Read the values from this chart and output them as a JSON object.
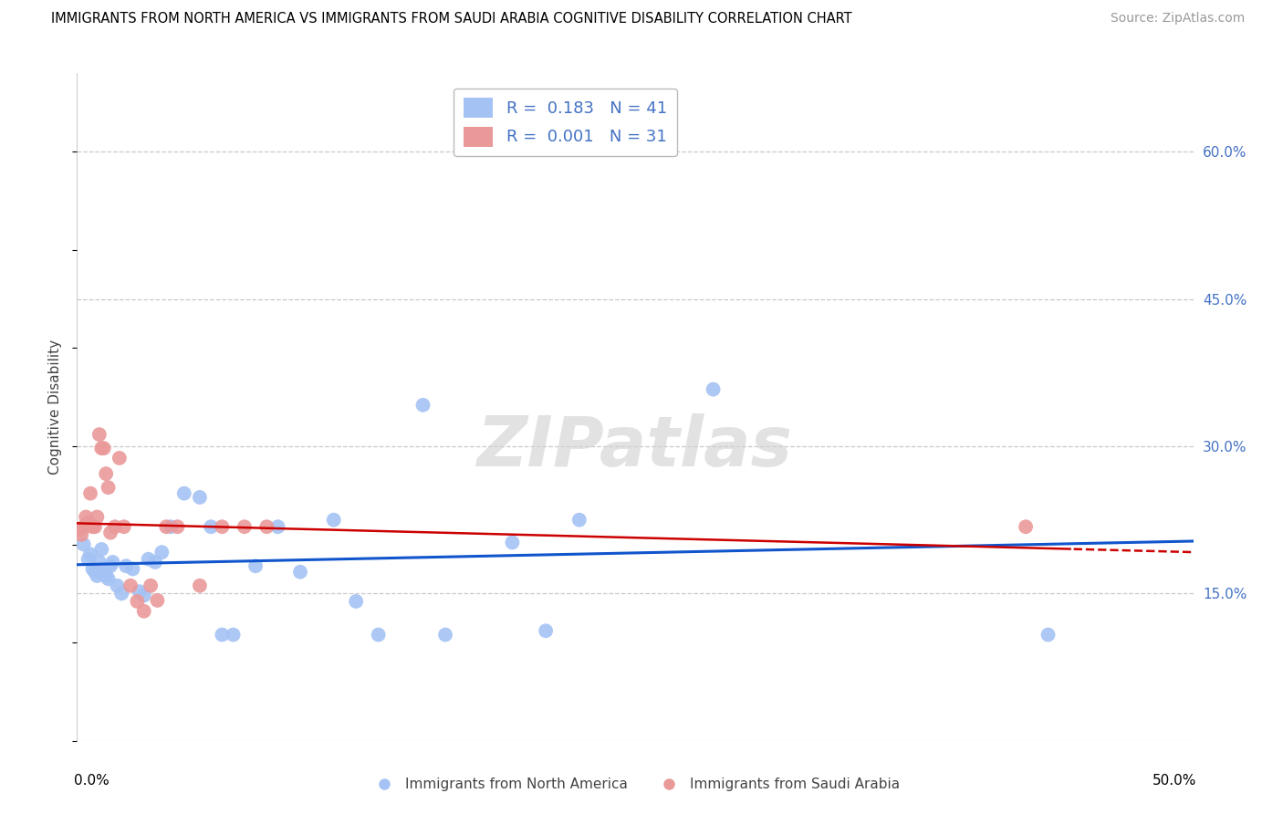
{
  "title": "IMMIGRANTS FROM NORTH AMERICA VS IMMIGRANTS FROM SAUDI ARABIA COGNITIVE DISABILITY CORRELATION CHART",
  "source": "Source: ZipAtlas.com",
  "ylabel": "Cognitive Disability",
  "right_ytick_labels": [
    "60.0%",
    "45.0%",
    "30.0%",
    "15.0%"
  ],
  "right_ytick_vals": [
    0.6,
    0.45,
    0.3,
    0.15
  ],
  "xlim": [
    0.0,
    0.5
  ],
  "ylim": [
    0.0,
    0.68
  ],
  "blue_scatter_color": "#a4c2f4",
  "pink_scatter_color": "#ea9999",
  "blue_line_color": "#1155cc",
  "pink_line_color": "#cc0000",
  "watermark_text": "ZIPatlas",
  "watermark_color": "#d0d0d0",
  "north_america_x": [
    0.003,
    0.005,
    0.006,
    0.007,
    0.008,
    0.009,
    0.01,
    0.011,
    0.012,
    0.013,
    0.014,
    0.015,
    0.016,
    0.018,
    0.02,
    0.022,
    0.025,
    0.028,
    0.03,
    0.032,
    0.035,
    0.038,
    0.042,
    0.048,
    0.055,
    0.06,
    0.065,
    0.07,
    0.08,
    0.09,
    0.1,
    0.115,
    0.125,
    0.135,
    0.155,
    0.165,
    0.195,
    0.21,
    0.225,
    0.285,
    0.435
  ],
  "north_america_y": [
    0.2,
    0.185,
    0.19,
    0.175,
    0.172,
    0.168,
    0.182,
    0.195,
    0.17,
    0.168,
    0.165,
    0.178,
    0.182,
    0.158,
    0.15,
    0.178,
    0.175,
    0.152,
    0.148,
    0.185,
    0.182,
    0.192,
    0.218,
    0.252,
    0.248,
    0.218,
    0.108,
    0.108,
    0.178,
    0.218,
    0.172,
    0.225,
    0.142,
    0.108,
    0.342,
    0.108,
    0.202,
    0.112,
    0.225,
    0.358,
    0.108
  ],
  "saudi_arabia_x": [
    0.001,
    0.002,
    0.003,
    0.004,
    0.005,
    0.006,
    0.007,
    0.008,
    0.009,
    0.01,
    0.011,
    0.012,
    0.013,
    0.014,
    0.015,
    0.017,
    0.019,
    0.021,
    0.024,
    0.027,
    0.03,
    0.033,
    0.036,
    0.04,
    0.045,
    0.055,
    0.065,
    0.075,
    0.085,
    0.425
  ],
  "saudi_arabia_y": [
    0.215,
    0.21,
    0.218,
    0.228,
    0.222,
    0.252,
    0.218,
    0.218,
    0.228,
    0.312,
    0.298,
    0.298,
    0.272,
    0.258,
    0.212,
    0.218,
    0.288,
    0.218,
    0.158,
    0.142,
    0.132,
    0.158,
    0.143,
    0.218,
    0.218,
    0.158,
    0.218,
    0.218,
    0.218,
    0.218
  ]
}
